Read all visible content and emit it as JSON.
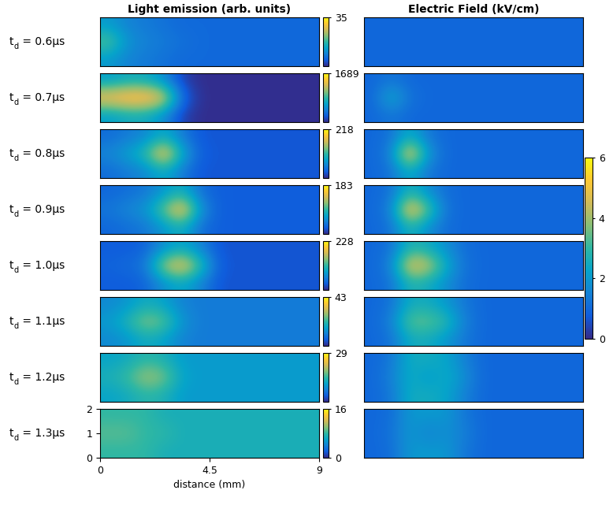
{
  "chart_data": {
    "type": "heatmap_grid",
    "column_titles": [
      "Light emission (arb. units)",
      "Electric Field (kV/cm)"
    ],
    "row_labels": {
      "variable": "t",
      "subscript": "d",
      "separator": " = ",
      "unit": "μs",
      "values": [
        0.6,
        0.7,
        0.8,
        0.9,
        1.0,
        1.1,
        1.2,
        1.3
      ]
    },
    "x_label": "distance (mm)",
    "xlim": [
      0,
      9
    ],
    "ylim": [
      0,
      2
    ],
    "xticks": [
      0,
      4.5,
      9
    ],
    "yticks": [
      0,
      1,
      2
    ],
    "light_emission": {
      "colorbar_lims": [
        [
          0,
          35
        ],
        [
          0,
          1689
        ],
        [
          0,
          218
        ],
        [
          0,
          183
        ],
        [
          0,
          228
        ],
        [
          0,
          43
        ],
        [
          0,
          29
        ],
        [
          0,
          16
        ]
      ],
      "colorbar_ticks": [
        [
          35
        ],
        [
          1689
        ],
        [
          218
        ],
        [
          183
        ],
        [
          228
        ],
        [
          43
        ],
        [
          29
        ],
        [
          0,
          16
        ]
      ],
      "cells": [
        [
          [
            12,
            9,
            8,
            7,
            6,
            6,
            6,
            6,
            6,
            6,
            6,
            6
          ],
          [
            20,
            11,
            9,
            8,
            7,
            6,
            6,
            6,
            6,
            6,
            6,
            6
          ],
          [
            12,
            9,
            8,
            7,
            6,
            6,
            6,
            6,
            6,
            6,
            6,
            6
          ]
        ],
        [
          [
            600,
            700,
            700,
            500,
            100,
            20,
            20,
            20,
            20,
            20,
            20,
            20
          ],
          [
            1500,
            1600,
            1600,
            1400,
            300,
            30,
            20,
            20,
            20,
            20,
            20,
            20
          ],
          [
            600,
            700,
            700,
            500,
            100,
            20,
            20,
            20,
            20,
            20,
            20,
            20
          ]
        ],
        [
          [
            40,
            50,
            60,
            90,
            50,
            25,
            25,
            25,
            25,
            25,
            25,
            25
          ],
          [
            60,
            80,
            110,
            200,
            90,
            30,
            25,
            25,
            25,
            25,
            25,
            25
          ],
          [
            40,
            50,
            60,
            90,
            50,
            25,
            25,
            25,
            25,
            25,
            25,
            25
          ]
        ],
        [
          [
            30,
            35,
            40,
            60,
            80,
            35,
            25,
            25,
            25,
            25,
            25,
            25
          ],
          [
            40,
            50,
            60,
            110,
            170,
            60,
            25,
            25,
            25,
            25,
            25,
            25
          ],
          [
            30,
            35,
            40,
            60,
            80,
            35,
            25,
            25,
            25,
            25,
            25,
            25
          ]
        ],
        [
          [
            30,
            30,
            35,
            70,
            90,
            60,
            25,
            25,
            25,
            25,
            25,
            25
          ],
          [
            35,
            40,
            50,
            160,
            200,
            120,
            30,
            25,
            25,
            25,
            25,
            25
          ],
          [
            30,
            30,
            35,
            70,
            90,
            60,
            25,
            25,
            25,
            25,
            25,
            25
          ]
        ],
        [
          [
            12,
            14,
            18,
            16,
            11,
            10,
            10,
            10,
            10,
            10,
            10,
            10
          ],
          [
            15,
            20,
            28,
            25,
            14,
            10,
            10,
            10,
            10,
            10,
            10,
            10
          ],
          [
            12,
            14,
            18,
            16,
            11,
            10,
            10,
            10,
            10,
            10,
            10,
            10
          ]
        ],
        [
          [
            11,
            12,
            14,
            13,
            10,
            10,
            10,
            10,
            10,
            10,
            10,
            10
          ],
          [
            13,
            15,
            20,
            18,
            11,
            10,
            10,
            10,
            10,
            10,
            10,
            10
          ],
          [
            11,
            12,
            14,
            13,
            10,
            10,
            10,
            10,
            10,
            10,
            10,
            10
          ]
        ],
        [
          [
            8,
            8,
            8,
            7,
            7,
            7,
            7,
            7,
            7,
            7,
            7,
            7
          ],
          [
            9,
            9,
            8,
            8,
            7,
            7,
            7,
            7,
            7,
            7,
            7,
            7
          ],
          [
            8,
            8,
            8,
            7,
            7,
            7,
            7,
            7,
            7,
            7,
            7,
            7
          ]
        ]
      ]
    },
    "electric_field": {
      "colorbar_lim": [
        0,
        6
      ],
      "colorbar_ticks": [
        0,
        2,
        4,
        6
      ],
      "cells": [
        [
          [
            1,
            1,
            1,
            1,
            1,
            1,
            1,
            1,
            1,
            1,
            1,
            1
          ],
          [
            1,
            1,
            1,
            1,
            1,
            1,
            1,
            1,
            1,
            1,
            1,
            1
          ],
          [
            1,
            1,
            1,
            1,
            1,
            1,
            1,
            1,
            1,
            1,
            1,
            1
          ]
        ],
        [
          [
            1,
            1.3,
            1,
            1,
            1,
            1,
            1,
            1,
            1,
            1,
            1,
            1
          ],
          [
            1,
            2.5,
            1.2,
            1,
            1,
            1,
            1,
            1,
            1,
            1,
            1,
            1
          ],
          [
            1,
            1.3,
            1,
            1,
            1,
            1,
            1,
            1,
            1,
            1,
            1,
            1
          ]
        ],
        [
          [
            1,
            1.2,
            2.5,
            1.3,
            1,
            1,
            1,
            1,
            1,
            1,
            1,
            1
          ],
          [
            1,
            1.5,
            5.5,
            2,
            1,
            1,
            1,
            1,
            1,
            1,
            1,
            1
          ],
          [
            1,
            1.2,
            2.5,
            1.3,
            1,
            1,
            1,
            1,
            1,
            1,
            1,
            1
          ]
        ],
        [
          [
            1,
            1.2,
            2.8,
            1.8,
            1.1,
            1,
            1,
            1,
            1,
            1,
            1,
            1
          ],
          [
            1,
            1.5,
            5.5,
            3.5,
            1.2,
            1,
            1,
            1,
            1,
            1,
            1,
            1
          ],
          [
            1,
            1.2,
            2.8,
            1.8,
            1.1,
            1,
            1,
            1,
            1,
            1,
            1,
            1
          ]
        ],
        [
          [
            1,
            1.2,
            2.8,
            2.5,
            1.8,
            1.1,
            1,
            1,
            1,
            1,
            1,
            1
          ],
          [
            1,
            1.5,
            5,
            4.5,
            2.5,
            1.2,
            1,
            1,
            1,
            1,
            1,
            1
          ],
          [
            1,
            1.2,
            2.8,
            2.5,
            1.8,
            1.1,
            1,
            1,
            1,
            1,
            1,
            1
          ]
        ],
        [
          [
            1,
            1.2,
            2.5,
            2.5,
            2,
            1.3,
            1,
            1,
            1,
            1,
            1,
            1
          ],
          [
            1,
            1.5,
            3.5,
            3.5,
            3,
            1.5,
            1,
            1,
            1,
            1,
            1,
            1
          ],
          [
            1,
            1.2,
            2.5,
            2.5,
            2,
            1.3,
            1,
            1,
            1,
            1,
            1,
            1
          ]
        ],
        [
          [
            1,
            1.3,
            2.5,
            2.5,
            2.3,
            1.5,
            1,
            1,
            1,
            1,
            1,
            1
          ],
          [
            1,
            1.5,
            2.5,
            2,
            2.5,
            1.8,
            1,
            1,
            1,
            1,
            1,
            1
          ],
          [
            1,
            1.3,
            2.5,
            2.5,
            2.3,
            1.5,
            1,
            1,
            1,
            1,
            1,
            1
          ]
        ],
        [
          [
            1,
            1.1,
            2,
            2,
            2,
            1.3,
            1,
            1,
            1,
            1,
            1,
            1
          ],
          [
            1,
            1.2,
            2,
            1.5,
            1.8,
            1.5,
            1,
            1,
            1,
            1,
            1,
            1
          ],
          [
            1,
            1.1,
            2,
            2,
            2,
            1.3,
            1,
            1,
            1,
            1,
            1,
            1
          ]
        ]
      ]
    }
  }
}
